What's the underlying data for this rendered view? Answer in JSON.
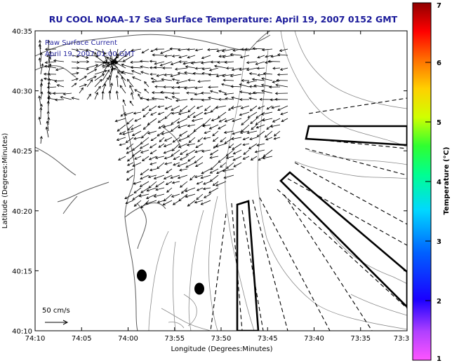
{
  "title": "RU COOL  NOAA–17  Sea Surface Temperature:  April 19, 2007 0152 GMT",
  "legend": {
    "line1": "Raw Surface Current",
    "line2": "April 19, 2007 01:00 GMT"
  },
  "scale_label": "50 cm/s",
  "x_axis": {
    "label": "Longitude (Degrees:Minutes)",
    "ticks": [
      "74:10",
      "74:05",
      "74:00",
      "73:55",
      "73:50",
      "73:45",
      "73:40",
      "73:35",
      "73:3"
    ]
  },
  "y_axis": {
    "label": "Latitude (Degrees:Minutes)",
    "ticks": [
      "40:35",
      "40:30",
      "40:25",
      "40:20",
      "40:15",
      "40:10"
    ]
  },
  "colorbar": {
    "label": "Temperature (°C)",
    "ticks": [
      "7",
      "6",
      "5",
      "4",
      "3",
      "2",
      "1"
    ],
    "min": 1,
    "max": 7
  },
  "colors": {
    "title": "#1a1a9a",
    "legend_text": "#2a2aa0",
    "vectors": "#000000",
    "contours": "#888888",
    "coast": "#666666"
  }
}
